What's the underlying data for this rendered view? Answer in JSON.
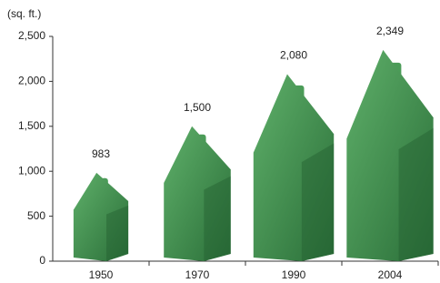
{
  "chart_data": {
    "type": "pictogram",
    "y_axis_label": "(sq. ft.)",
    "categories": [
      "1950",
      "1970",
      "1990",
      "2004"
    ],
    "values": [
      983,
      1500,
      2080,
      2349
    ],
    "value_labels": [
      "983",
      "1,500",
      "2,080",
      "2,349"
    ],
    "color": "#3f8f4f",
    "ylim": [
      0,
      2500
    ],
    "yticks": [
      0,
      500,
      {
        "value": 1000,
        "label": "1,000"
      },
      {
        "value": 1500,
        "label": "1,500"
      },
      {
        "value": 2000,
        "label": "2,000"
      },
      {
        "value": 2500,
        "label": "2,500"
      }
    ]
  }
}
